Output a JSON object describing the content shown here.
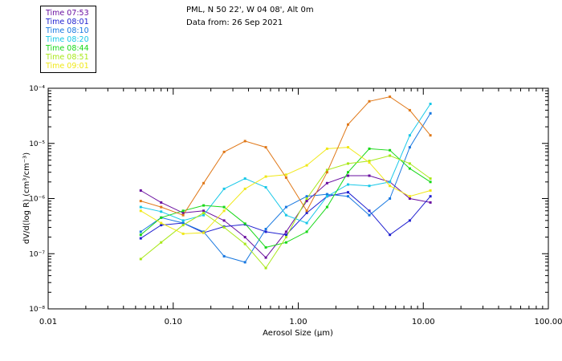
{
  "header": {
    "location": "PML, N 50 22', W 04 08', Alt 0m",
    "data_from": "Data from: 26 Sep 2021"
  },
  "chart_data": {
    "type": "line",
    "title": "",
    "xlabel": "Aerosol Size (μm)",
    "ylabel": "dV/d(log R) (cm³/cm⁻³)",
    "xscale": "log",
    "yscale": "log",
    "xlim": [
      0.01,
      100
    ],
    "ylim": [
      1e-08,
      0.0001
    ],
    "x_tick_labels": [
      "0.01",
      "0.10",
      "1.00",
      "10.00",
      "100.00"
    ],
    "y_tick_labels": [
      "10⁻⁸",
      "10⁻⁷",
      "10⁻⁶",
      "10⁻⁵",
      "10⁻⁴"
    ],
    "grid": false,
    "legend_position": "top-left",
    "x": [
      0.055,
      0.08,
      0.12,
      0.175,
      0.255,
      0.375,
      0.55,
      0.8,
      1.17,
      1.7,
      2.5,
      3.7,
      5.4,
      7.8,
      11.4
    ],
    "series": [
      {
        "name": "Time 07:53",
        "color": "#6a0fa0",
        "values": [
          1.4e-06,
          8.5e-07,
          5.5e-07,
          6e-07,
          4e-07,
          2e-07,
          8.5e-08,
          2.5e-07,
          9e-07,
          1.9e-06,
          2.6e-06,
          2.6e-06,
          2e-06,
          1e-06,
          8.5e-07
        ]
      },
      {
        "name": "Time 08:01",
        "color": "#2020d0",
        "values": [
          1.9e-07,
          3.3e-07,
          3.6e-07,
          2.4e-07,
          3.1e-07,
          3.4e-07,
          2.5e-07,
          2.2e-07,
          5.5e-07,
          1.1e-06,
          1.3e-06,
          6e-07,
          2.2e-07,
          4e-07,
          1.1e-06
        ]
      },
      {
        "name": "Time 08:10",
        "color": "#1878e0",
        "values": [
          2.5e-07,
          4.5e-07,
          3.6e-07,
          2.5e-07,
          9e-08,
          7e-08,
          2.8e-07,
          7e-07,
          1.1e-06,
          1.2e-06,
          1.1e-06,
          5e-07,
          1e-06,
          8.5e-06,
          3.5e-05
        ]
      },
      {
        "name": "Time 08:20",
        "color": "#18c8e8",
        "values": [
          7e-07,
          5.8e-07,
          4e-07,
          5e-07,
          1.5e-06,
          2.3e-06,
          1.6e-06,
          5e-07,
          3.6e-07,
          1.1e-06,
          1.8e-06,
          1.7e-06,
          2e-06,
          1.4e-05,
          5.2e-05
        ]
      },
      {
        "name": "Time 08:44",
        "color": "#18d818",
        "values": [
          2.2e-07,
          4.5e-07,
          6e-07,
          7.5e-07,
          7e-07,
          3.5e-07,
          1.3e-07,
          1.6e-07,
          2.5e-07,
          7e-07,
          3e-06,
          8e-06,
          7.5e-06,
          3.5e-06,
          2e-06
        ]
      },
      {
        "name": "Time 08:51",
        "color": "#a8e818",
        "values": [
          8e-08,
          1.6e-07,
          3.3e-07,
          5.5e-07,
          3e-07,
          1.5e-07,
          5.5e-08,
          2e-07,
          1e-06,
          3.3e-06,
          4.3e-06,
          4.8e-06,
          6e-06,
          4.3e-06,
          2.3e-06
        ]
      },
      {
        "name": "Time 09:01",
        "color": "#f0e818",
        "values": [
          6e-07,
          3.6e-07,
          2.3e-07,
          2.4e-07,
          6e-07,
          1.5e-06,
          2.5e-06,
          2.7e-06,
          4e-06,
          8e-06,
          8.5e-06,
          4.5e-06,
          1.7e-06,
          1.1e-06,
          1.4e-06
        ]
      },
      {
        "name": "",
        "color": "#e07818",
        "values": [
          9e-07,
          7e-07,
          5e-07,
          1.9e-06,
          7e-06,
          1.1e-05,
          8.5e-06,
          2.4e-06,
          6e-07,
          3e-06,
          2.2e-05,
          5.8e-05,
          7e-05,
          4e-05,
          1.4e-05
        ]
      }
    ]
  }
}
